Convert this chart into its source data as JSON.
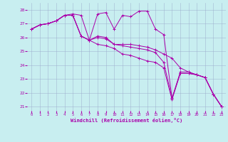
{
  "xlabel": "Windchill (Refroidissement éolien,°C)",
  "xlim": [
    -0.5,
    23.5
  ],
  "ylim": [
    20.7,
    28.5
  ],
  "yticks": [
    21,
    22,
    23,
    24,
    25,
    26,
    27,
    28
  ],
  "xticks": [
    0,
    1,
    2,
    3,
    4,
    5,
    6,
    7,
    8,
    9,
    10,
    11,
    12,
    13,
    14,
    15,
    16,
    17,
    18,
    19,
    20,
    21,
    22,
    23
  ],
  "bg_color": "#c8eef0",
  "line_color": "#aa00aa",
  "grid_color": "#99aacc",
  "lines": [
    [
      26.6,
      26.9,
      27.0,
      27.2,
      27.6,
      27.7,
      27.6,
      25.8,
      27.7,
      27.8,
      26.6,
      27.6,
      27.5,
      27.9,
      27.9,
      26.6,
      26.2,
      21.6,
      23.5,
      23.5,
      23.3,
      23.1,
      21.9,
      21.0
    ],
    [
      26.6,
      26.9,
      27.0,
      27.2,
      27.6,
      27.6,
      26.1,
      25.8,
      26.1,
      26.0,
      25.5,
      25.5,
      25.5,
      25.4,
      25.3,
      25.1,
      24.8,
      24.5,
      23.8,
      23.5,
      23.3,
      23.1,
      21.9,
      21.0
    ],
    [
      26.6,
      26.9,
      27.0,
      27.2,
      27.6,
      27.6,
      26.1,
      25.8,
      26.0,
      25.9,
      25.5,
      25.4,
      25.3,
      25.2,
      25.1,
      24.9,
      24.2,
      21.6,
      23.4,
      23.4,
      23.3,
      23.1,
      21.9,
      21.0
    ],
    [
      26.6,
      26.9,
      27.0,
      27.2,
      27.6,
      27.6,
      26.1,
      25.8,
      25.5,
      25.4,
      25.2,
      24.8,
      24.7,
      24.5,
      24.3,
      24.2,
      23.8,
      21.5,
      23.4,
      23.4,
      23.3,
      23.1,
      21.9,
      21.0
    ]
  ]
}
